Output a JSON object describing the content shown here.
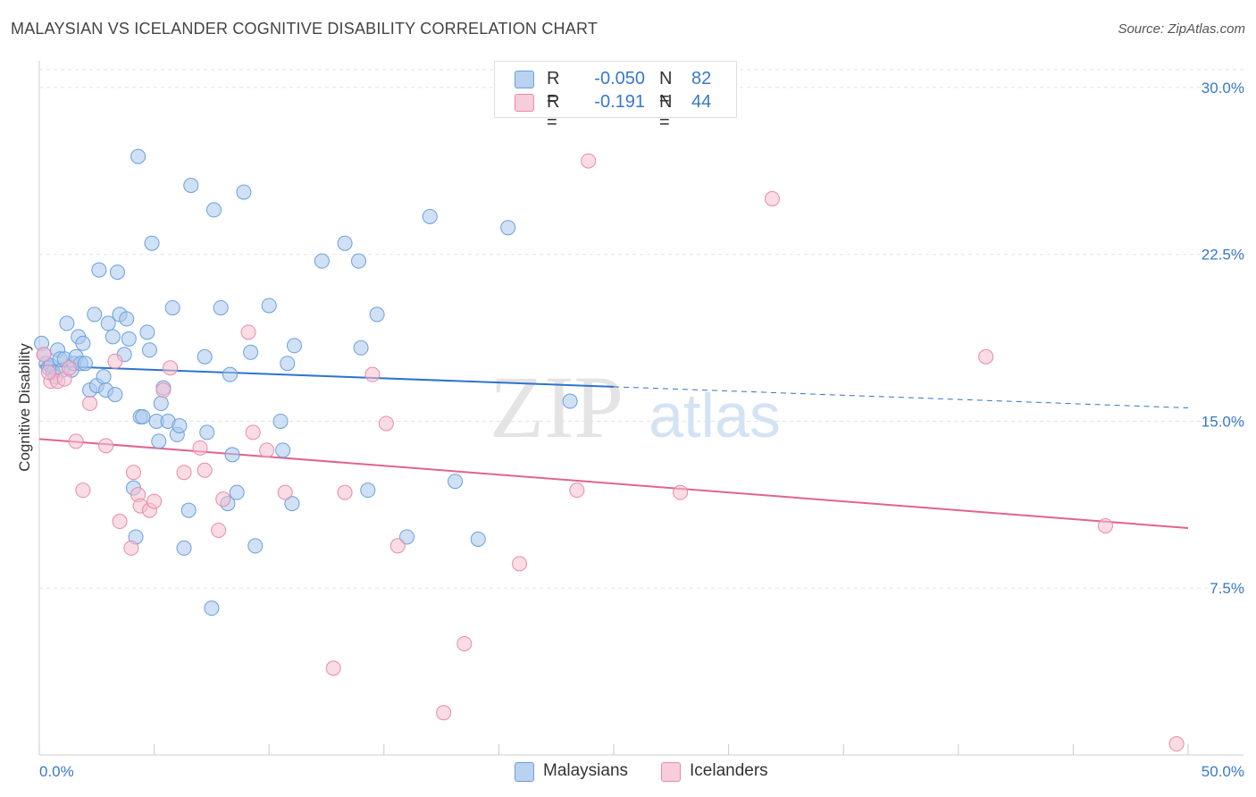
{
  "header": {
    "title": "MALAYSIAN VS ICELANDER COGNITIVE DISABILITY CORRELATION CHART",
    "source": "Source: ZipAtlas.com"
  },
  "legend_top": {
    "rows": [
      {
        "r_label": "R =",
        "r_value": "-0.050",
        "n_label": "N =",
        "n_value": "82"
      },
      {
        "r_label": "R =",
        "r_value": "-0.191",
        "n_label": "N =",
        "n_value": "44"
      }
    ]
  },
  "legend_bottom": {
    "items": [
      {
        "label": "Malaysians"
      },
      {
        "label": "Icelanders"
      }
    ]
  },
  "watermark": {
    "zip": "ZIP",
    "atlas": "atlas"
  },
  "colors": {
    "blue_fill": "#aac8ec",
    "blue_stroke": "#6b9fdc",
    "blue_line": "#2e74c9",
    "pink_fill": "#f6bfd0",
    "pink_stroke": "#e98aaa",
    "pink_line": "#e0648f",
    "tick_text": "#3a78c9"
  },
  "chart_data": {
    "type": "scatter",
    "title": "MALAYSIAN VS ICELANDER COGNITIVE DISABILITY CORRELATION CHART",
    "xlabel": "",
    "ylabel": "Cognitive Disability",
    "xlim": [
      0,
      50
    ],
    "ylim": [
      0,
      30.8
    ],
    "x_tick_labels": [
      "0.0%",
      "50.0%"
    ],
    "y_ticks": [
      7.5,
      15.0,
      22.5,
      30.0
    ],
    "y_tick_labels": [
      "7.5%",
      "15.0%",
      "22.5%",
      "30.0%"
    ],
    "grid": true,
    "legend": "top-center",
    "series": [
      {
        "name": "Malaysians",
        "color": "#6b9fdc",
        "points": [
          [
            0.1,
            18.5
          ],
          [
            0.2,
            18.0
          ],
          [
            0.3,
            17.6
          ],
          [
            0.4,
            17.4
          ],
          [
            0.5,
            17.5
          ],
          [
            0.6,
            17.2
          ],
          [
            0.7,
            17.0
          ],
          [
            0.8,
            18.2
          ],
          [
            0.9,
            17.8
          ],
          [
            1.0,
            17.3
          ],
          [
            1.1,
            17.8
          ],
          [
            1.2,
            19.4
          ],
          [
            1.4,
            17.3
          ],
          [
            1.5,
            17.6
          ],
          [
            1.6,
            17.9
          ],
          [
            1.7,
            18.8
          ],
          [
            1.8,
            17.6
          ],
          [
            1.9,
            18.5
          ],
          [
            2.0,
            17.6
          ],
          [
            2.2,
            16.4
          ],
          [
            2.4,
            19.8
          ],
          [
            2.5,
            16.6
          ],
          [
            2.6,
            21.8
          ],
          [
            2.8,
            17.0
          ],
          [
            2.9,
            16.4
          ],
          [
            3.0,
            19.4
          ],
          [
            3.2,
            18.8
          ],
          [
            3.3,
            16.2
          ],
          [
            3.4,
            21.7
          ],
          [
            3.5,
            19.8
          ],
          [
            3.7,
            18.0
          ],
          [
            3.8,
            19.6
          ],
          [
            3.9,
            18.7
          ],
          [
            4.1,
            12.0
          ],
          [
            4.2,
            9.8
          ],
          [
            4.3,
            26.9
          ],
          [
            4.4,
            15.2
          ],
          [
            4.5,
            15.2
          ],
          [
            4.7,
            19.0
          ],
          [
            4.8,
            18.2
          ],
          [
            4.9,
            23.0
          ],
          [
            5.1,
            15.0
          ],
          [
            5.2,
            14.1
          ],
          [
            5.3,
            15.8
          ],
          [
            5.4,
            16.5
          ],
          [
            5.6,
            15.0
          ],
          [
            5.8,
            20.1
          ],
          [
            6.0,
            14.4
          ],
          [
            6.1,
            14.8
          ],
          [
            6.3,
            9.3
          ],
          [
            6.5,
            11.0
          ],
          [
            6.6,
            25.6
          ],
          [
            7.2,
            17.9
          ],
          [
            7.3,
            14.5
          ],
          [
            7.5,
            6.6
          ],
          [
            7.6,
            24.5
          ],
          [
            7.9,
            20.1
          ],
          [
            8.2,
            11.3
          ],
          [
            8.3,
            17.1
          ],
          [
            8.4,
            13.5
          ],
          [
            8.6,
            11.8
          ],
          [
            8.9,
            25.3
          ],
          [
            9.2,
            18.1
          ],
          [
            9.4,
            9.4
          ],
          [
            10.0,
            20.2
          ],
          [
            10.5,
            15.0
          ],
          [
            10.6,
            13.7
          ],
          [
            10.8,
            17.6
          ],
          [
            11.0,
            11.3
          ],
          [
            11.1,
            18.4
          ],
          [
            12.3,
            22.2
          ],
          [
            13.3,
            23.0
          ],
          [
            13.9,
            22.2
          ],
          [
            14.0,
            18.3
          ],
          [
            14.3,
            11.9
          ],
          [
            14.7,
            19.8
          ],
          [
            16.0,
            9.8
          ],
          [
            17.0,
            24.2
          ],
          [
            18.1,
            12.3
          ],
          [
            19.1,
            9.7
          ],
          [
            20.4,
            23.7
          ],
          [
            23.1,
            15.9
          ]
        ],
        "trend": {
          "x": [
            0,
            50
          ],
          "y": [
            17.5,
            15.6
          ],
          "solid_to_x": 25
        }
      },
      {
        "name": "Icelanders",
        "color": "#e98aaa",
        "points": [
          [
            0.2,
            18.0
          ],
          [
            0.5,
            16.8
          ],
          [
            0.8,
            16.8
          ],
          [
            1.1,
            16.9
          ],
          [
            1.3,
            17.4
          ],
          [
            1.6,
            14.1
          ],
          [
            1.9,
            11.9
          ],
          [
            2.2,
            15.8
          ],
          [
            2.9,
            13.9
          ],
          [
            3.3,
            17.7
          ],
          [
            3.5,
            10.5
          ],
          [
            4.0,
            9.3
          ],
          [
            4.1,
            12.7
          ],
          [
            4.3,
            11.7
          ],
          [
            4.4,
            11.2
          ],
          [
            4.8,
            11.0
          ],
          [
            5.0,
            11.4
          ],
          [
            5.4,
            16.4
          ],
          [
            5.7,
            17.4
          ],
          [
            6.3,
            12.7
          ],
          [
            7.0,
            13.8
          ],
          [
            7.2,
            12.8
          ],
          [
            7.8,
            10.1
          ],
          [
            8.0,
            11.5
          ],
          [
            9.1,
            19.0
          ],
          [
            9.3,
            14.5
          ],
          [
            9.9,
            13.7
          ],
          [
            10.7,
            11.8
          ],
          [
            12.8,
            3.9
          ],
          [
            13.3,
            11.8
          ],
          [
            14.5,
            17.1
          ],
          [
            15.1,
            14.9
          ],
          [
            15.6,
            9.4
          ],
          [
            17.6,
            1.9
          ],
          [
            18.5,
            5.0
          ],
          [
            20.9,
            8.6
          ],
          [
            23.4,
            11.9
          ],
          [
            23.9,
            26.7
          ],
          [
            27.9,
            11.8
          ],
          [
            31.9,
            25.0
          ],
          [
            41.2,
            17.9
          ],
          [
            46.4,
            10.3
          ],
          [
            49.5,
            0.5
          ],
          [
            0.4,
            17.2
          ]
        ],
        "trend": {
          "x": [
            0,
            50
          ],
          "y": [
            14.2,
            10.2
          ]
        }
      }
    ]
  }
}
